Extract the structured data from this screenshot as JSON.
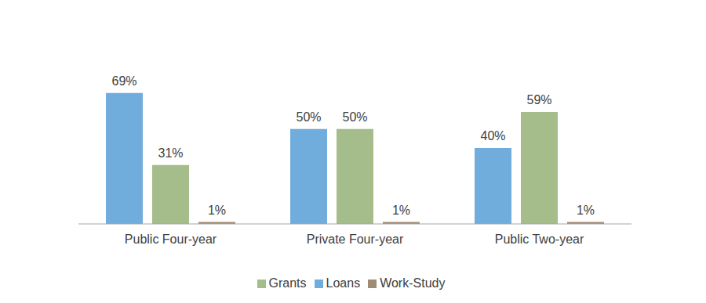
{
  "chart_data": {
    "type": "bar",
    "categories": [
      "Public Four-year",
      "Private Four-year",
      "Public Two-year"
    ],
    "series": [
      {
        "name": "Loans",
        "color": "#70addd",
        "values": [
          69,
          50,
          40
        ],
        "value_labels": [
          "69%",
          "50%",
          "40%"
        ]
      },
      {
        "name": "Grants",
        "color": "#a5bd8b",
        "values": [
          31,
          50,
          59
        ],
        "value_labels": [
          "31%",
          "50%",
          "59%"
        ]
      },
      {
        "name": "Work-Study",
        "color": "#a08b73",
        "values": [
          1,
          1,
          1
        ],
        "value_labels": [
          "1%",
          "1%",
          "1%"
        ]
      }
    ],
    "ylim": [
      0,
      80
    ],
    "tick_labels": "x",
    "data_labels": true,
    "legend": "bottom",
    "grid": false
  }
}
